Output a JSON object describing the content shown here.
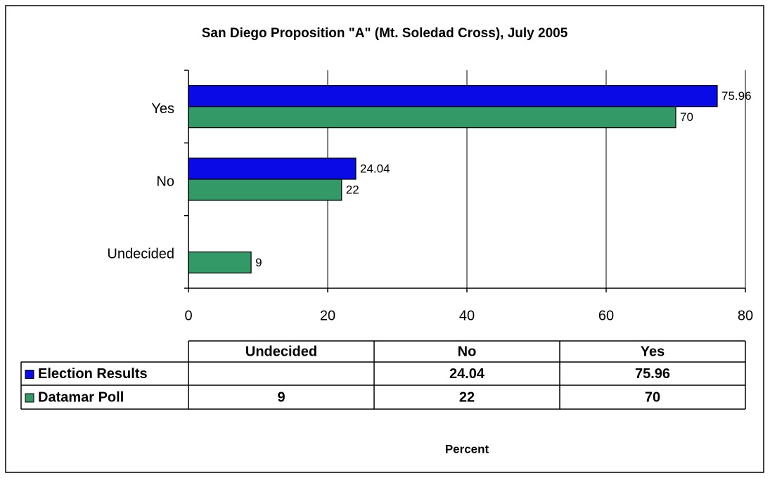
{
  "chart_data": {
    "type": "barh",
    "title": "San Diego Proposition \"A\" (Mt. Soledad Cross), July 2005",
    "categories": [
      "Undecided",
      "No",
      "Yes"
    ],
    "series": [
      {
        "name": "Election Results",
        "color": "#0a0ae6",
        "values": [
          null,
          24.04,
          75.96
        ]
      },
      {
        "name": "Datamar Poll",
        "color": "#339966",
        "values": [
          9,
          22,
          70
        ]
      }
    ],
    "xlabel": "Percent",
    "xlim": [
      0,
      80
    ],
    "xticks": [
      0,
      20,
      40,
      60,
      80
    ],
    "grid": true
  }
}
